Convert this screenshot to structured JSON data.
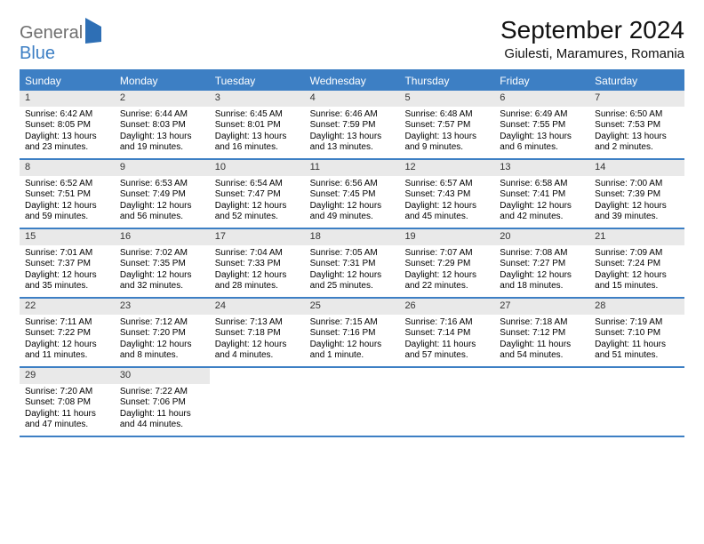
{
  "logo": {
    "part1": "General",
    "part2": "Blue"
  },
  "title": "September 2024",
  "location": "Giulesti, Maramures, Romania",
  "colors": {
    "accent": "#3d7fc4",
    "daynum_bg": "#e9e9e9",
    "background": "#ffffff",
    "logo_gray": "#6f6f6f"
  },
  "day_headers": [
    "Sunday",
    "Monday",
    "Tuesday",
    "Wednesday",
    "Thursday",
    "Friday",
    "Saturday"
  ],
  "weeks": [
    [
      {
        "n": "1",
        "sr": "Sunrise: 6:42 AM",
        "ss": "Sunset: 8:05 PM",
        "d1": "Daylight: 13 hours",
        "d2": "and 23 minutes."
      },
      {
        "n": "2",
        "sr": "Sunrise: 6:44 AM",
        "ss": "Sunset: 8:03 PM",
        "d1": "Daylight: 13 hours",
        "d2": "and 19 minutes."
      },
      {
        "n": "3",
        "sr": "Sunrise: 6:45 AM",
        "ss": "Sunset: 8:01 PM",
        "d1": "Daylight: 13 hours",
        "d2": "and 16 minutes."
      },
      {
        "n": "4",
        "sr": "Sunrise: 6:46 AM",
        "ss": "Sunset: 7:59 PM",
        "d1": "Daylight: 13 hours",
        "d2": "and 13 minutes."
      },
      {
        "n": "5",
        "sr": "Sunrise: 6:48 AM",
        "ss": "Sunset: 7:57 PM",
        "d1": "Daylight: 13 hours",
        "d2": "and 9 minutes."
      },
      {
        "n": "6",
        "sr": "Sunrise: 6:49 AM",
        "ss": "Sunset: 7:55 PM",
        "d1": "Daylight: 13 hours",
        "d2": "and 6 minutes."
      },
      {
        "n": "7",
        "sr": "Sunrise: 6:50 AM",
        "ss": "Sunset: 7:53 PM",
        "d1": "Daylight: 13 hours",
        "d2": "and 2 minutes."
      }
    ],
    [
      {
        "n": "8",
        "sr": "Sunrise: 6:52 AM",
        "ss": "Sunset: 7:51 PM",
        "d1": "Daylight: 12 hours",
        "d2": "and 59 minutes."
      },
      {
        "n": "9",
        "sr": "Sunrise: 6:53 AM",
        "ss": "Sunset: 7:49 PM",
        "d1": "Daylight: 12 hours",
        "d2": "and 56 minutes."
      },
      {
        "n": "10",
        "sr": "Sunrise: 6:54 AM",
        "ss": "Sunset: 7:47 PM",
        "d1": "Daylight: 12 hours",
        "d2": "and 52 minutes."
      },
      {
        "n": "11",
        "sr": "Sunrise: 6:56 AM",
        "ss": "Sunset: 7:45 PM",
        "d1": "Daylight: 12 hours",
        "d2": "and 49 minutes."
      },
      {
        "n": "12",
        "sr": "Sunrise: 6:57 AM",
        "ss": "Sunset: 7:43 PM",
        "d1": "Daylight: 12 hours",
        "d2": "and 45 minutes."
      },
      {
        "n": "13",
        "sr": "Sunrise: 6:58 AM",
        "ss": "Sunset: 7:41 PM",
        "d1": "Daylight: 12 hours",
        "d2": "and 42 minutes."
      },
      {
        "n": "14",
        "sr": "Sunrise: 7:00 AM",
        "ss": "Sunset: 7:39 PM",
        "d1": "Daylight: 12 hours",
        "d2": "and 39 minutes."
      }
    ],
    [
      {
        "n": "15",
        "sr": "Sunrise: 7:01 AM",
        "ss": "Sunset: 7:37 PM",
        "d1": "Daylight: 12 hours",
        "d2": "and 35 minutes."
      },
      {
        "n": "16",
        "sr": "Sunrise: 7:02 AM",
        "ss": "Sunset: 7:35 PM",
        "d1": "Daylight: 12 hours",
        "d2": "and 32 minutes."
      },
      {
        "n": "17",
        "sr": "Sunrise: 7:04 AM",
        "ss": "Sunset: 7:33 PM",
        "d1": "Daylight: 12 hours",
        "d2": "and 28 minutes."
      },
      {
        "n": "18",
        "sr": "Sunrise: 7:05 AM",
        "ss": "Sunset: 7:31 PM",
        "d1": "Daylight: 12 hours",
        "d2": "and 25 minutes."
      },
      {
        "n": "19",
        "sr": "Sunrise: 7:07 AM",
        "ss": "Sunset: 7:29 PM",
        "d1": "Daylight: 12 hours",
        "d2": "and 22 minutes."
      },
      {
        "n": "20",
        "sr": "Sunrise: 7:08 AM",
        "ss": "Sunset: 7:27 PM",
        "d1": "Daylight: 12 hours",
        "d2": "and 18 minutes."
      },
      {
        "n": "21",
        "sr": "Sunrise: 7:09 AM",
        "ss": "Sunset: 7:24 PM",
        "d1": "Daylight: 12 hours",
        "d2": "and 15 minutes."
      }
    ],
    [
      {
        "n": "22",
        "sr": "Sunrise: 7:11 AM",
        "ss": "Sunset: 7:22 PM",
        "d1": "Daylight: 12 hours",
        "d2": "and 11 minutes."
      },
      {
        "n": "23",
        "sr": "Sunrise: 7:12 AM",
        "ss": "Sunset: 7:20 PM",
        "d1": "Daylight: 12 hours",
        "d2": "and 8 minutes."
      },
      {
        "n": "24",
        "sr": "Sunrise: 7:13 AM",
        "ss": "Sunset: 7:18 PM",
        "d1": "Daylight: 12 hours",
        "d2": "and 4 minutes."
      },
      {
        "n": "25",
        "sr": "Sunrise: 7:15 AM",
        "ss": "Sunset: 7:16 PM",
        "d1": "Daylight: 12 hours",
        "d2": "and 1 minute."
      },
      {
        "n": "26",
        "sr": "Sunrise: 7:16 AM",
        "ss": "Sunset: 7:14 PM",
        "d1": "Daylight: 11 hours",
        "d2": "and 57 minutes."
      },
      {
        "n": "27",
        "sr": "Sunrise: 7:18 AM",
        "ss": "Sunset: 7:12 PM",
        "d1": "Daylight: 11 hours",
        "d2": "and 54 minutes."
      },
      {
        "n": "28",
        "sr": "Sunrise: 7:19 AM",
        "ss": "Sunset: 7:10 PM",
        "d1": "Daylight: 11 hours",
        "d2": "and 51 minutes."
      }
    ],
    [
      {
        "n": "29",
        "sr": "Sunrise: 7:20 AM",
        "ss": "Sunset: 7:08 PM",
        "d1": "Daylight: 11 hours",
        "d2": "and 47 minutes."
      },
      {
        "n": "30",
        "sr": "Sunrise: 7:22 AM",
        "ss": "Sunset: 7:06 PM",
        "d1": "Daylight: 11 hours",
        "d2": "and 44 minutes."
      },
      {
        "empty": true
      },
      {
        "empty": true
      },
      {
        "empty": true
      },
      {
        "empty": true
      },
      {
        "empty": true
      }
    ]
  ]
}
